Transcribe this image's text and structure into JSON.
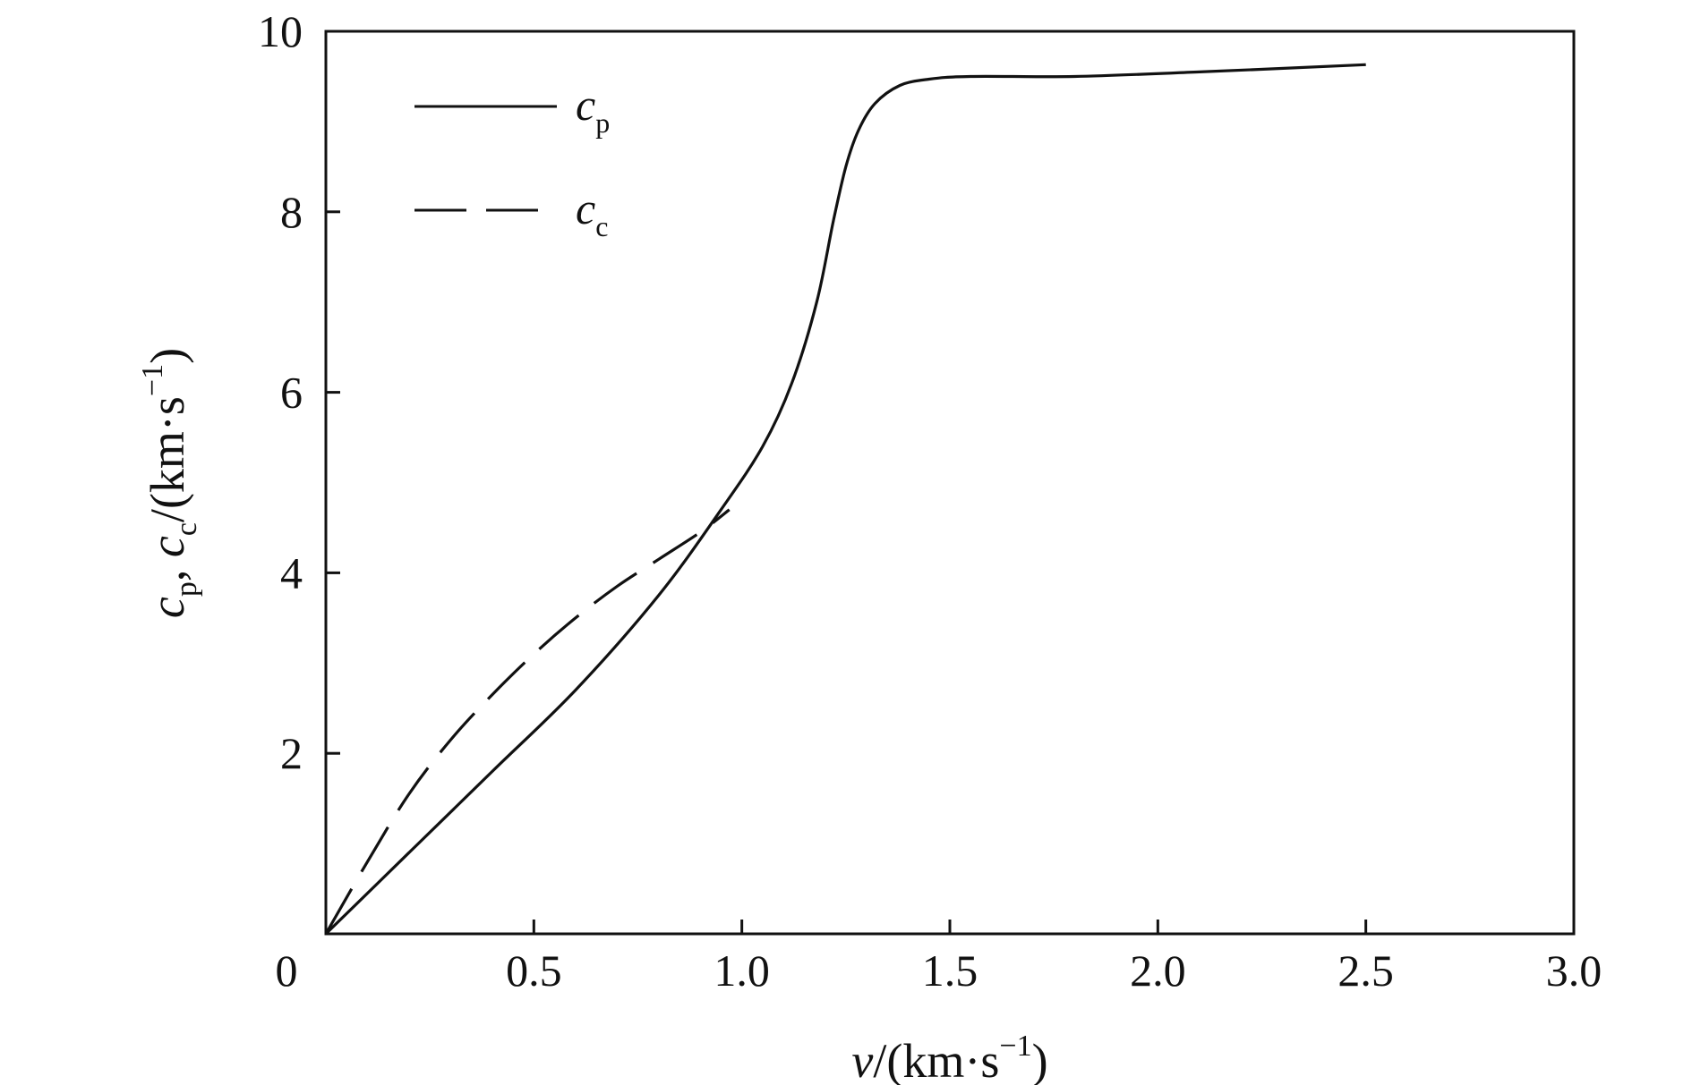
{
  "chart_data": {
    "type": "line",
    "title": "",
    "x_axis": {
      "label_var": "v",
      "label_unit": "/(km·s",
      "label_sup": "−1",
      "label_close": ")",
      "range": [
        0,
        3.0
      ],
      "ticks": [
        0,
        0.5,
        1.0,
        1.5,
        2.0,
        2.5,
        3.0
      ],
      "tick_labels": [
        "0",
        "0.5",
        "1.0",
        "1.5",
        "2.0",
        "2.5",
        "3.0"
      ]
    },
    "y_axis": {
      "label_var1": "c",
      "label_sub1": "p",
      "label_sep": ", ",
      "label_var2": "c",
      "label_sub2": "c",
      "label_unit": "/(km·s",
      "label_sup": "−1",
      "label_close": ")",
      "range": [
        0,
        10
      ],
      "ticks": [
        2,
        4,
        6,
        8,
        10
      ],
      "tick_labels": [
        "2",
        "4",
        "6",
        "8",
        "10"
      ]
    },
    "grid": false,
    "legend": {
      "placement": "top-left",
      "entries": [
        {
          "var": "c",
          "sub": "p",
          "style": "solid"
        },
        {
          "var": "c",
          "sub": "c",
          "style": "dashed"
        }
      ]
    },
    "series": [
      {
        "key": "cp",
        "style": "solid",
        "color": "#111111",
        "x": [
          0,
          0.2,
          0.4,
          0.6,
          0.8,
          0.95,
          1.05,
          1.12,
          1.18,
          1.22,
          1.25,
          1.28,
          1.32,
          1.38,
          1.45,
          1.55,
          1.8,
          2.1,
          2.5
        ],
        "y": [
          0,
          0.9,
          1.8,
          2.7,
          3.75,
          4.7,
          5.4,
          6.1,
          7.0,
          7.9,
          8.5,
          8.9,
          9.2,
          9.4,
          9.47,
          9.5,
          9.5,
          9.55,
          9.63
        ]
      },
      {
        "key": "cc",
        "style": "dashed",
        "color": "#111111",
        "x": [
          0,
          0.1,
          0.2,
          0.3,
          0.4,
          0.5,
          0.6,
          0.7,
          0.8,
          0.9,
          0.97
        ],
        "y": [
          0,
          0.8,
          1.55,
          2.15,
          2.65,
          3.1,
          3.5,
          3.85,
          4.15,
          4.45,
          4.7
        ]
      }
    ]
  }
}
